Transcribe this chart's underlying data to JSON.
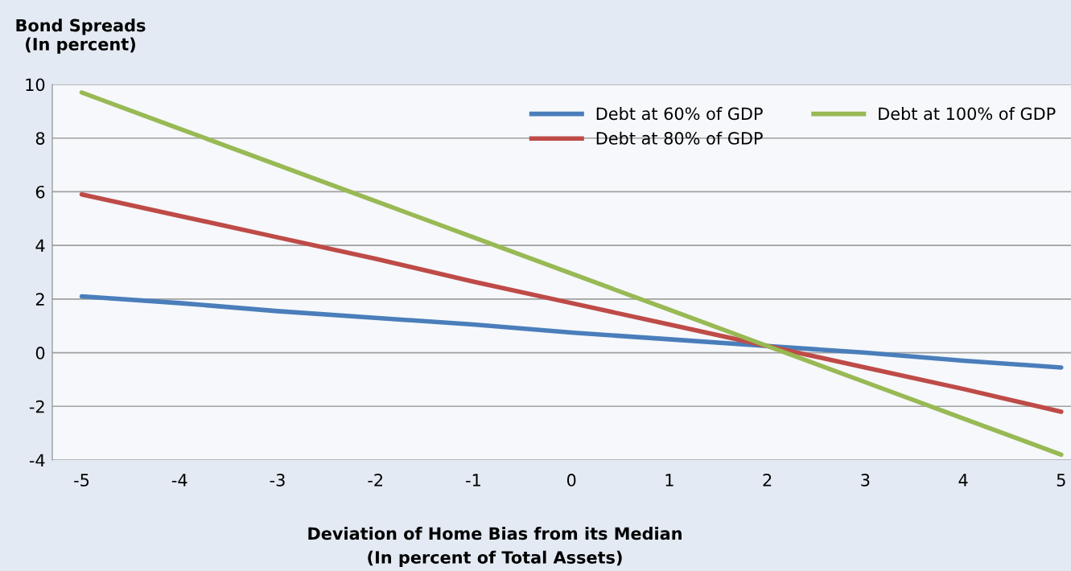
{
  "chart_data": {
    "type": "line",
    "ylabel": "Bond Spreads\n(In percent)",
    "xlabel": "Deviation of Home Bias from its Median\n(In percent of Total Assets)",
    "categories": [
      "-5",
      "-4",
      "-3",
      "-2",
      "-1",
      "0",
      "1",
      "2",
      "3",
      "4",
      "5"
    ],
    "series": [
      {
        "name": "Debt at 60% of GDP",
        "color": "#4a7ebb",
        "values": [
          2.1,
          1.85,
          1.55,
          1.3,
          1.05,
          0.75,
          0.5,
          0.25,
          0,
          -0.3,
          -0.55
        ]
      },
      {
        "name": "Debt at 80% of GDP",
        "color": "#be4b48",
        "values": [
          5.9,
          5.1,
          4.3,
          3.5,
          2.65,
          1.85,
          1.05,
          0.25,
          -0.55,
          -1.35,
          -2.2
        ]
      },
      {
        "name": "Debt at 100% of GDP",
        "color": "#98b954",
        "values": [
          9.7,
          8.35,
          7.0,
          5.65,
          4.3,
          2.95,
          1.6,
          0.25,
          -1.1,
          -2.45,
          -3.8
        ]
      }
    ],
    "ylim": [
      -4,
      10
    ],
    "yticks": [
      -4,
      -2,
      0,
      2,
      4,
      6,
      8,
      10
    ],
    "grid": "y",
    "legend": "top right",
    "marker": "none",
    "line_style": "solid"
  }
}
